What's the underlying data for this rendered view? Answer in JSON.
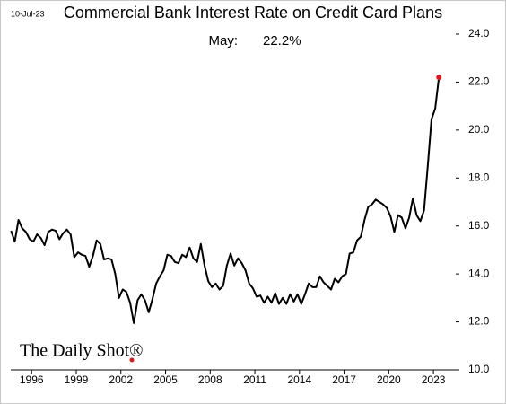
{
  "chart_data": {
    "type": "line",
    "title": "Commercial Bank Interest Rate on Credit Card Plans",
    "date": "10-Jul-23",
    "annotation": [
      "May:",
      "22.2%"
    ],
    "logo": "The Daily Shot®",
    "color": "#000000",
    "end_marker_color": "#e0161b",
    "x": [
      1994.62,
      1994.87,
      1995.12,
      1995.37,
      1995.62,
      1995.87,
      1996.12,
      1996.37,
      1996.62,
      1996.87,
      1997.12,
      1997.37,
      1997.62,
      1997.87,
      1998.12,
      1998.37,
      1998.62,
      1998.87,
      1999.12,
      1999.37,
      1999.62,
      1999.87,
      2000.12,
      2000.37,
      2000.62,
      2000.87,
      2001.12,
      2001.37,
      2001.62,
      2001.87,
      2002.12,
      2002.37,
      2002.62,
      2002.87,
      2003.12,
      2003.37,
      2003.62,
      2003.87,
      2004.12,
      2004.37,
      2004.62,
      2004.87,
      2005.12,
      2005.37,
      2005.62,
      2005.87,
      2006.12,
      2006.37,
      2006.62,
      2006.87,
      2007.12,
      2007.37,
      2007.62,
      2007.87,
      2008.12,
      2008.37,
      2008.62,
      2008.87,
      2009.12,
      2009.37,
      2009.62,
      2009.87,
      2010.12,
      2010.37,
      2010.62,
      2010.87,
      2011.12,
      2011.37,
      2011.62,
      2011.87,
      2012.12,
      2012.37,
      2012.62,
      2012.87,
      2013.12,
      2013.37,
      2013.62,
      2013.87,
      2014.12,
      2014.37,
      2014.62,
      2014.87,
      2015.12,
      2015.37,
      2015.62,
      2015.87,
      2016.12,
      2016.37,
      2016.62,
      2016.87,
      2017.12,
      2017.37,
      2017.62,
      2017.87,
      2018.12,
      2018.37,
      2018.62,
      2018.87,
      2019.12,
      2019.37,
      2019.62,
      2019.87,
      2020.12,
      2020.37,
      2020.62,
      2020.87,
      2021.12,
      2021.37,
      2021.62,
      2021.87,
      2022.12,
      2022.37,
      2022.62,
      2022.87,
      2023.12,
      2023.37
    ],
    "values": [
      15.8,
      15.35,
      16.25,
      15.9,
      15.75,
      15.45,
      15.35,
      15.65,
      15.5,
      15.2,
      15.75,
      15.85,
      15.8,
      15.45,
      15.7,
      15.85,
      15.65,
      14.7,
      14.9,
      14.8,
      14.75,
      14.3,
      14.75,
      15.4,
      15.25,
      14.6,
      14.65,
      14.6,
      14.0,
      13.0,
      13.35,
      13.25,
      12.8,
      11.95,
      12.9,
      13.15,
      12.9,
      12.4,
      12.95,
      13.6,
      13.9,
      14.15,
      14.8,
      14.75,
      14.5,
      14.45,
      14.8,
      14.7,
      15.1,
      14.65,
      14.5,
      15.25,
      14.35,
      13.7,
      13.45,
      13.6,
      13.35,
      13.5,
      14.35,
      14.85,
      14.35,
      14.65,
      14.45,
      14.15,
      13.6,
      13.4,
      13.05,
      13.1,
      12.8,
      13.05,
      12.8,
      13.2,
      12.75,
      13.0,
      12.75,
      13.15,
      12.85,
      13.15,
      12.75,
      13.15,
      13.6,
      13.45,
      13.45,
      13.9,
      13.65,
      13.5,
      13.35,
      13.8,
      13.65,
      13.9,
      14.0,
      14.85,
      14.9,
      15.4,
      15.55,
      16.25,
      16.8,
      16.9,
      17.1,
      17.0,
      16.9,
      16.75,
      16.4,
      15.75,
      16.45,
      16.35,
      15.9,
      16.35,
      17.15,
      16.45,
      16.2,
      16.65,
      18.5,
      20.45,
      20.9,
      22.2
    ],
    "xlim": [
      1994.6,
      2024.5
    ],
    "xticks": [
      1996,
      1999,
      2002,
      2005,
      2008,
      2011,
      2014,
      2017,
      2020,
      2023
    ],
    "ylim": [
      10,
      24
    ],
    "yticks": [
      {
        "value": 10,
        "label": "10.0"
      },
      {
        "value": 12,
        "label": "12.0"
      },
      {
        "value": 14,
        "label": "14.0"
      },
      {
        "value": 16,
        "label": "16.0"
      },
      {
        "value": 18,
        "label": "18.0"
      },
      {
        "value": 20,
        "label": "20.0"
      },
      {
        "value": 22,
        "label": "22.0"
      },
      {
        "value": 24,
        "label": "24.0"
      }
    ],
    "y_axis_side": "right"
  }
}
